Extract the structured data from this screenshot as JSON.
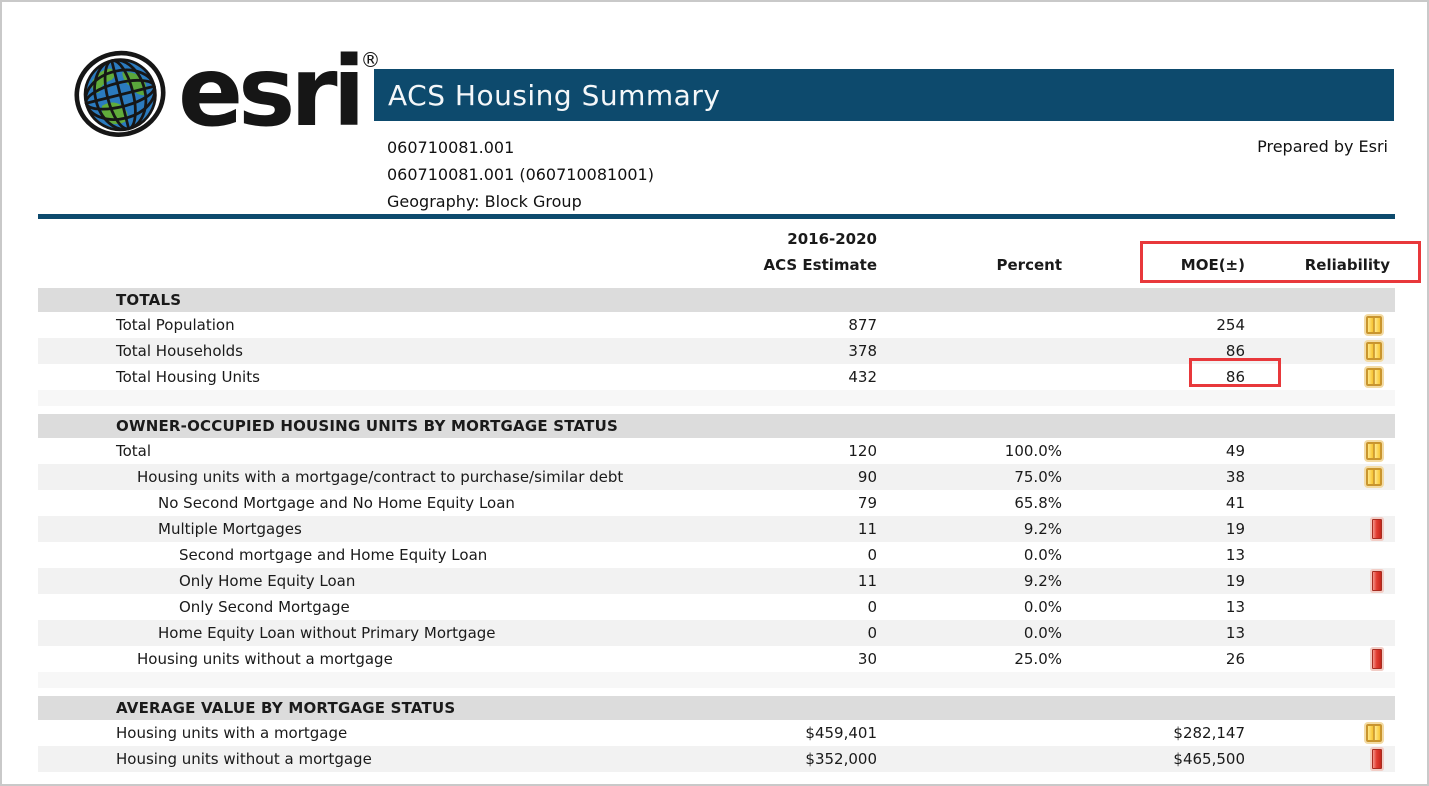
{
  "logo": {
    "brand": "esri",
    "registered": "®"
  },
  "header": {
    "title": "ACS Housing Summary",
    "geo_line1": "060710081.001",
    "geo_line2": "060710081.001 (060710081001)",
    "geo_line3": "Geography: Block Group",
    "prepared_by": "Prepared by Esri"
  },
  "columns": {
    "estimate_period": "2016-2020",
    "estimate": "ACS Estimate",
    "percent": "Percent",
    "moe": "MOE(±)",
    "reliability": "Reliability"
  },
  "colors": {
    "header_navy": "#0d4a6d",
    "section_header_bg": "#dcdcdc",
    "alt_row_bg": "#f2f2f2",
    "annotation_red": "#e8383b",
    "reliability_medium": "#f7c535",
    "reliability_low": "#e23c31"
  },
  "annotations": {
    "highlighted_headers": [
      "MOE(±)",
      "Reliability"
    ],
    "highlighted_value": "86"
  },
  "sections": [
    {
      "title": "TOTALS",
      "rows": [
        {
          "label": "Total Population",
          "indent": 0,
          "estimate": "877",
          "percent": "",
          "moe": "254",
          "reliability": "medium",
          "moe_highlighted": false
        },
        {
          "label": "Total Households",
          "indent": 0,
          "estimate": "378",
          "percent": "",
          "moe": "86",
          "reliability": "medium",
          "moe_highlighted": false
        },
        {
          "label": "Total Housing Units",
          "indent": 0,
          "estimate": "432",
          "percent": "",
          "moe": "86",
          "reliability": "medium",
          "moe_highlighted": true
        }
      ]
    },
    {
      "title": "OWNER-OCCUPIED HOUSING UNITS BY MORTGAGE STATUS",
      "rows": [
        {
          "label": "Total",
          "indent": 0,
          "estimate": "120",
          "percent": "100.0%",
          "moe": "49",
          "reliability": "medium",
          "moe_highlighted": false
        },
        {
          "label": "Housing units with a mortgage/contract to purchase/similar debt",
          "indent": 1,
          "estimate": "90",
          "percent": "75.0%",
          "moe": "38",
          "reliability": "medium",
          "moe_highlighted": false
        },
        {
          "label": "No Second Mortgage and No Home Equity Loan",
          "indent": 2,
          "estimate": "79",
          "percent": "65.8%",
          "moe": "41",
          "reliability": "none",
          "moe_highlighted": false
        },
        {
          "label": "Multiple Mortgages",
          "indent": 2,
          "estimate": "11",
          "percent": "9.2%",
          "moe": "19",
          "reliability": "low",
          "moe_highlighted": false
        },
        {
          "label": "Second mortgage and Home Equity Loan",
          "indent": 3,
          "estimate": "0",
          "percent": "0.0%",
          "moe": "13",
          "reliability": "none",
          "moe_highlighted": false
        },
        {
          "label": "Only Home Equity Loan",
          "indent": 3,
          "estimate": "11",
          "percent": "9.2%",
          "moe": "19",
          "reliability": "low",
          "moe_highlighted": false
        },
        {
          "label": "Only Second Mortgage",
          "indent": 3,
          "estimate": "0",
          "percent": "0.0%",
          "moe": "13",
          "reliability": "none",
          "moe_highlighted": false
        },
        {
          "label": "Home Equity Loan without Primary Mortgage",
          "indent": 2,
          "estimate": "0",
          "percent": "0.0%",
          "moe": "13",
          "reliability": "none",
          "moe_highlighted": false
        },
        {
          "label": "Housing units without a mortgage",
          "indent": 1,
          "estimate": "30",
          "percent": "25.0%",
          "moe": "26",
          "reliability": "low",
          "moe_highlighted": false
        }
      ]
    },
    {
      "title": "AVERAGE VALUE BY MORTGAGE STATUS",
      "rows": [
        {
          "label": "Housing units with a mortgage",
          "indent": 0,
          "estimate": "$459,401",
          "percent": "",
          "moe": "$282,147",
          "reliability": "medium",
          "moe_highlighted": false
        },
        {
          "label": "Housing units without a mortgage",
          "indent": 0,
          "estimate": "$352,000",
          "percent": "",
          "moe": "$465,500",
          "reliability": "low",
          "moe_highlighted": false
        }
      ]
    }
  ]
}
